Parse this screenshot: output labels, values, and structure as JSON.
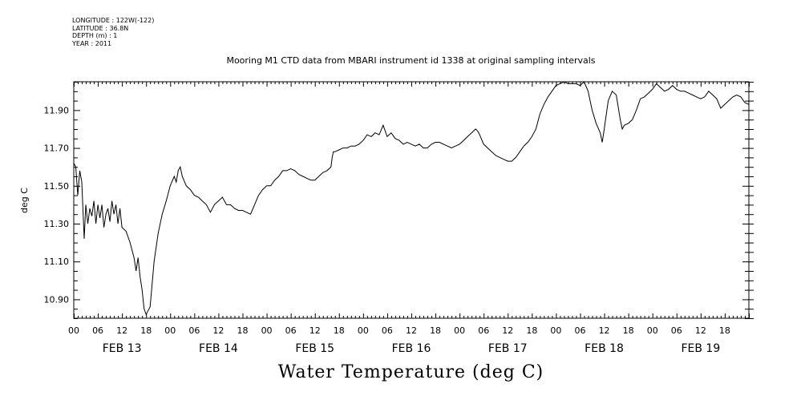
{
  "meta": {
    "longitude": "LONGITUDE : 122W(-122)",
    "latitude": "LATITUDE : 36.8N",
    "depth": "DEPTH (m) : 1",
    "year": "YEAR : 2011"
  },
  "chart_data": {
    "type": "line",
    "title": "Mooring M1 CTD data from MBARI instrument id 1338 at original sampling intervals",
    "main_title": "Water Temperature (deg C)",
    "ylabel": "deg C",
    "xlabel": "",
    "xlim_hours": [
      0,
      168
    ],
    "ylim": [
      10.8,
      12.05
    ],
    "y_ticks": [
      "11.90",
      "11.70",
      "11.50",
      "11.30",
      "11.10",
      "10.90"
    ],
    "y_tick_values": [
      11.9,
      11.7,
      11.5,
      11.3,
      11.1,
      10.9
    ],
    "hour_labels": [
      "00",
      "06",
      "12",
      "18",
      "00",
      "06",
      "12",
      "18",
      "00",
      "06",
      "12",
      "18",
      "00",
      "06",
      "12",
      "18",
      "00",
      "06",
      "12",
      "18",
      "00",
      "06",
      "12",
      "18",
      "00",
      "06",
      "12",
      "18"
    ],
    "day_labels": [
      "FEB 13",
      "FEB 14",
      "FEB 15",
      "FEB 16",
      "FEB 17",
      "FEB 18",
      "FEB 19"
    ],
    "grid": false,
    "series": [
      {
        "color": "#000000",
        "points": [
          [
            0,
            11.62
          ],
          [
            0.5,
            11.6
          ],
          [
            1,
            11.45
          ],
          [
            1.5,
            11.58
          ],
          [
            2,
            11.52
          ],
          [
            2.6,
            11.22
          ],
          [
            3,
            11.4
          ],
          [
            3.5,
            11.3
          ],
          [
            4,
            11.38
          ],
          [
            4.5,
            11.34
          ],
          [
            5,
            11.42
          ],
          [
            5.5,
            11.3
          ],
          [
            6,
            11.4
          ],
          [
            6.5,
            11.33
          ],
          [
            7,
            11.4
          ],
          [
            7.5,
            11.28
          ],
          [
            8,
            11.35
          ],
          [
            8.5,
            11.38
          ],
          [
            9,
            11.31
          ],
          [
            9.5,
            11.42
          ],
          [
            10,
            11.35
          ],
          [
            10.5,
            11.4
          ],
          [
            11,
            11.3
          ],
          [
            11.5,
            11.38
          ],
          [
            12,
            11.28
          ],
          [
            13,
            11.26
          ],
          [
            14,
            11.2
          ],
          [
            15,
            11.12
          ],
          [
            15.5,
            11.05
          ],
          [
            16,
            11.12
          ],
          [
            16.5,
            11.02
          ],
          [
            17,
            10.95
          ],
          [
            17.5,
            10.85
          ],
          [
            18,
            10.82
          ],
          [
            19,
            10.86
          ],
          [
            19.5,
            10.98
          ],
          [
            20,
            11.1
          ],
          [
            21,
            11.25
          ],
          [
            22,
            11.35
          ],
          [
            23,
            11.42
          ],
          [
            24,
            11.5
          ],
          [
            25,
            11.55
          ],
          [
            25.5,
            11.52
          ],
          [
            26,
            11.58
          ],
          [
            26.5,
            11.6
          ],
          [
            27,
            11.55
          ],
          [
            28,
            11.5
          ],
          [
            29,
            11.48
          ],
          [
            30,
            11.45
          ],
          [
            31,
            11.44
          ],
          [
            32,
            11.42
          ],
          [
            33,
            11.4
          ],
          [
            34,
            11.36
          ],
          [
            35,
            11.4
          ],
          [
            36,
            11.42
          ],
          [
            37,
            11.44
          ],
          [
            38,
            11.4
          ],
          [
            39,
            11.4
          ],
          [
            40,
            11.38
          ],
          [
            41,
            11.37
          ],
          [
            42,
            11.37
          ],
          [
            43,
            11.36
          ],
          [
            44,
            11.35
          ],
          [
            45,
            11.4
          ],
          [
            46,
            11.45
          ],
          [
            47,
            11.48
          ],
          [
            48,
            11.5
          ],
          [
            49,
            11.5
          ],
          [
            50,
            11.53
          ],
          [
            51,
            11.55
          ],
          [
            52,
            11.58
          ],
          [
            53,
            11.58
          ],
          [
            54,
            11.59
          ],
          [
            55,
            11.58
          ],
          [
            56,
            11.56
          ],
          [
            57,
            11.55
          ],
          [
            58,
            11.54
          ],
          [
            59,
            11.53
          ],
          [
            60,
            11.53
          ],
          [
            61,
            11.55
          ],
          [
            62,
            11.57
          ],
          [
            63,
            11.58
          ],
          [
            64,
            11.6
          ],
          [
            64.3,
            11.65
          ],
          [
            64.6,
            11.68
          ],
          [
            65,
            11.68
          ],
          [
            66,
            11.69
          ],
          [
            67,
            11.7
          ],
          [
            68,
            11.7
          ],
          [
            69,
            11.71
          ],
          [
            70,
            11.71
          ],
          [
            71,
            11.72
          ],
          [
            72,
            11.74
          ],
          [
            73,
            11.77
          ],
          [
            74,
            11.76
          ],
          [
            75,
            11.78
          ],
          [
            76,
            11.77
          ],
          [
            77,
            11.82
          ],
          [
            78,
            11.76
          ],
          [
            79,
            11.78
          ],
          [
            80,
            11.75
          ],
          [
            81,
            11.74
          ],
          [
            82,
            11.72
          ],
          [
            83,
            11.73
          ],
          [
            84,
            11.72
          ],
          [
            85,
            11.71
          ],
          [
            86,
            11.72
          ],
          [
            87,
            11.7
          ],
          [
            88,
            11.7
          ],
          [
            89,
            11.72
          ],
          [
            90,
            11.73
          ],
          [
            91,
            11.73
          ],
          [
            92,
            11.72
          ],
          [
            93,
            11.71
          ],
          [
            94,
            11.7
          ],
          [
            95,
            11.71
          ],
          [
            96,
            11.72
          ],
          [
            97,
            11.74
          ],
          [
            98,
            11.76
          ],
          [
            99,
            11.78
          ],
          [
            100,
            11.8
          ],
          [
            100.5,
            11.79
          ],
          [
            101,
            11.77
          ],
          [
            102,
            11.72
          ],
          [
            103,
            11.7
          ],
          [
            104,
            11.68
          ],
          [
            105,
            11.66
          ],
          [
            106,
            11.65
          ],
          [
            107,
            11.64
          ],
          [
            108,
            11.63
          ],
          [
            109,
            11.63
          ],
          [
            110,
            11.65
          ],
          [
            111,
            11.68
          ],
          [
            112,
            11.71
          ],
          [
            113,
            11.73
          ],
          [
            114,
            11.76
          ],
          [
            115,
            11.8
          ],
          [
            116,
            11.88
          ],
          [
            117,
            11.93
          ],
          [
            118,
            11.97
          ],
          [
            119,
            12.0
          ],
          [
            120,
            12.03
          ],
          [
            121,
            12.04
          ],
          [
            122,
            12.05
          ],
          [
            123,
            12.04
          ],
          [
            124,
            12.04
          ],
          [
            125,
            12.04
          ],
          [
            126,
            12.03
          ],
          [
            127,
            12.05
          ],
          [
            128,
            12.0
          ],
          [
            129,
            11.9
          ],
          [
            130,
            11.83
          ],
          [
            131,
            11.78
          ],
          [
            131.5,
            11.73
          ],
          [
            132,
            11.8
          ],
          [
            133,
            11.95
          ],
          [
            134,
            12.0
          ],
          [
            135,
            11.98
          ],
          [
            136,
            11.85
          ],
          [
            136.5,
            11.8
          ],
          [
            137,
            11.82
          ],
          [
            138,
            11.83
          ],
          [
            139,
            11.85
          ],
          [
            140,
            11.9
          ],
          [
            141,
            11.96
          ],
          [
            142,
            11.97
          ],
          [
            143,
            11.99
          ],
          [
            144,
            12.01
          ],
          [
            145,
            12.04
          ],
          [
            146,
            12.02
          ],
          [
            147,
            12.0
          ],
          [
            148,
            12.01
          ],
          [
            149,
            12.03
          ],
          [
            150,
            12.01
          ],
          [
            151,
            12.0
          ],
          [
            152,
            12.0
          ],
          [
            153,
            11.99
          ],
          [
            154,
            11.98
          ],
          [
            155,
            11.97
          ],
          [
            156,
            11.96
          ],
          [
            157,
            11.97
          ],
          [
            158,
            12.0
          ],
          [
            159,
            11.98
          ],
          [
            160,
            11.96
          ],
          [
            161,
            11.91
          ],
          [
            162,
            11.93
          ],
          [
            163,
            11.95
          ],
          [
            164,
            11.97
          ],
          [
            165,
            11.98
          ],
          [
            166,
            11.97
          ],
          [
            167,
            11.94
          ],
          [
            168,
            11.93
          ]
        ]
      }
    ]
  }
}
